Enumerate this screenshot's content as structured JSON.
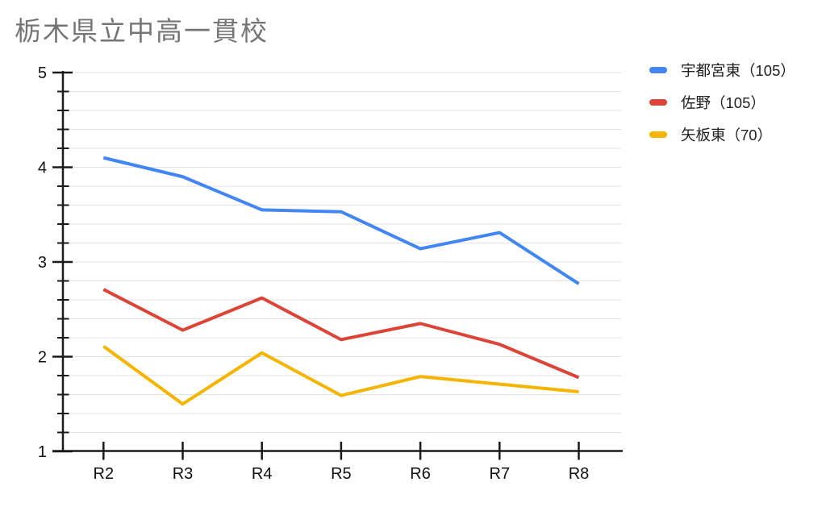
{
  "chart_data": {
    "type": "line",
    "title": "栃木県立中高一貫校",
    "categories": [
      "R2",
      "R3",
      "R4",
      "R5",
      "R6",
      "R7",
      "R8"
    ],
    "series": [
      {
        "name": "宇都宮東（105）",
        "color": "#4285F4",
        "values": [
          4.1,
          3.9,
          3.55,
          3.53,
          3.14,
          3.31,
          2.77
        ]
      },
      {
        "name": "佐野（105）",
        "color": "#DB4437",
        "values": [
          2.71,
          2.28,
          2.62,
          2.18,
          2.35,
          2.13,
          1.78
        ]
      },
      {
        "name": "矢板東（70）",
        "color": "#F4B400",
        "values": [
          2.11,
          1.5,
          2.04,
          1.59,
          1.79,
          1.71,
          1.63
        ]
      }
    ],
    "xlabel": "",
    "ylabel": "",
    "ylim": [
      1,
      5
    ],
    "yticks": [
      1,
      2,
      3,
      4,
      5
    ],
    "minor_tick_step": 0.2,
    "grid": true,
    "legend_position": "right",
    "line_width": 4,
    "title_color": "#757575",
    "axis_color": "#1a1a1a",
    "grid_color": "#e2e2e2",
    "label_color": "#111111"
  }
}
